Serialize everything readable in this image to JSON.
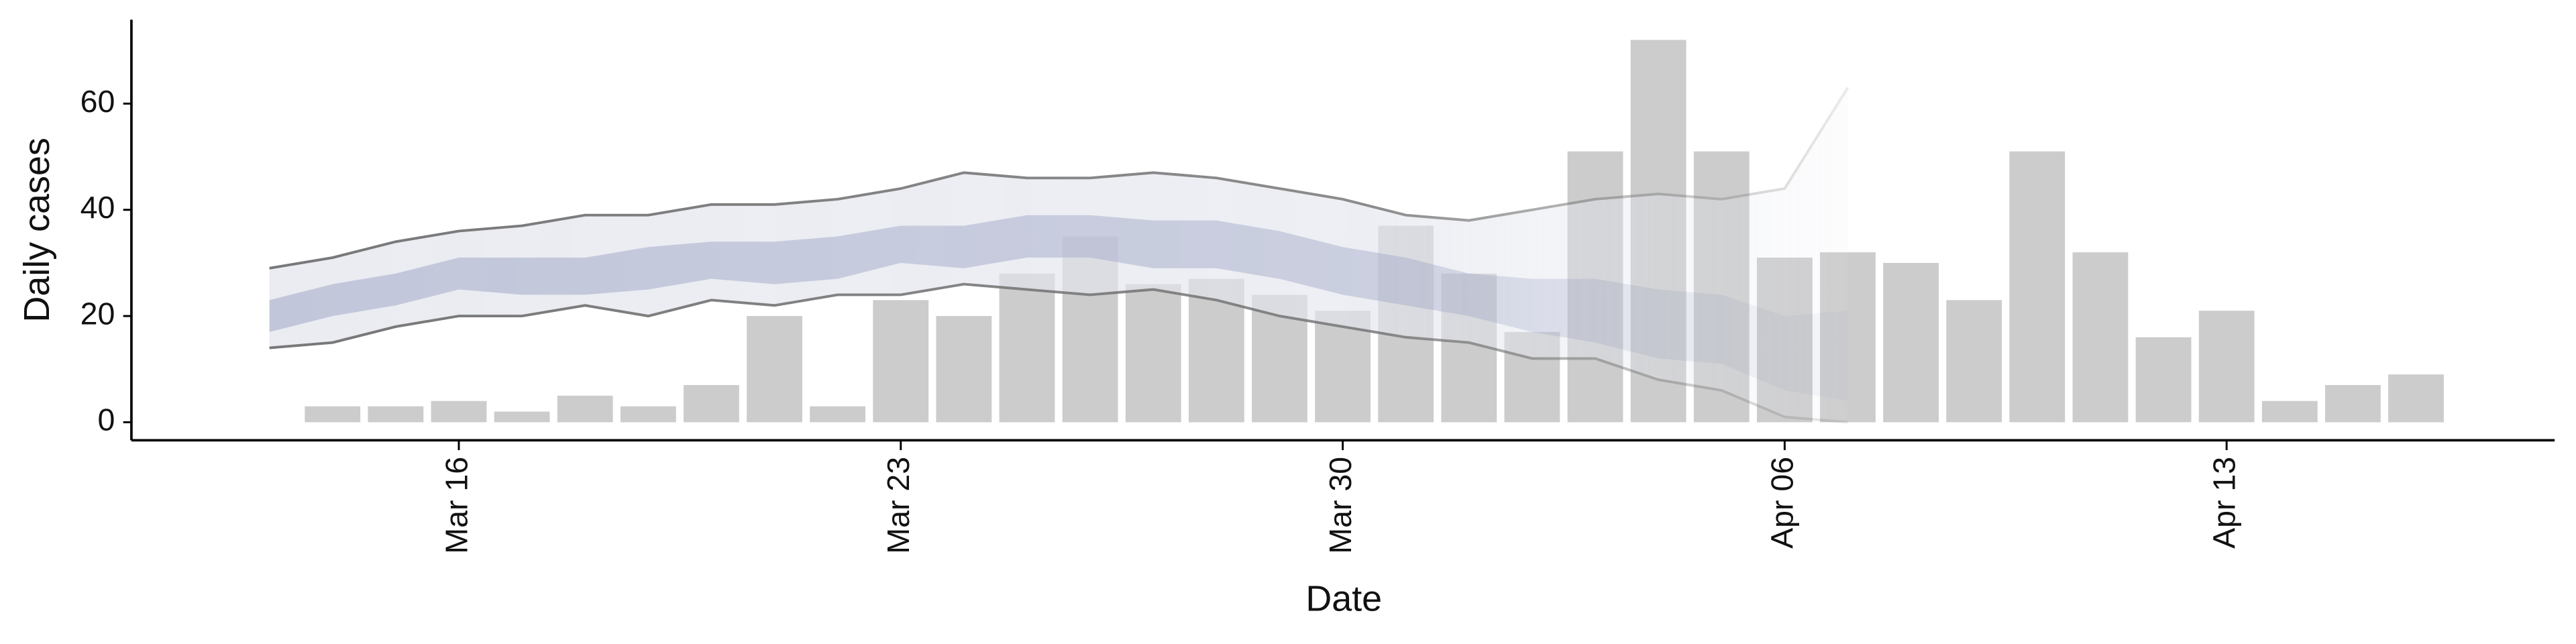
{
  "chart_data": {
    "type": "bar",
    "x_label": "Date",
    "y_label": "Daily cases",
    "categories": [
      null,
      null,
      null,
      "Mar 16",
      null,
      null,
      null,
      null,
      null,
      null,
      "Mar 23",
      null,
      null,
      null,
      null,
      null,
      null,
      "Mar 30",
      null,
      null,
      null,
      null,
      null,
      null,
      "Apr 06",
      null,
      null,
      null,
      null,
      null,
      null,
      "Apr 13",
      null,
      null,
      null
    ],
    "series": [
      {
        "color": "#cccccc",
        "values": [
          null,
          3,
          3,
          4,
          2,
          5,
          3,
          7,
          20,
          3,
          23,
          20,
          28,
          35,
          26,
          27,
          24,
          21,
          37,
          28,
          17,
          51,
          72,
          51,
          31,
          32,
          30,
          23,
          51,
          32,
          16,
          21,
          4,
          7,
          9
        ]
      }
    ],
    "bands": [
      {
        "color": "#e3e5ee",
        "line_color": "#777777",
        "upper": [
          29,
          31,
          34,
          36,
          37,
          39,
          39,
          41,
          41,
          42,
          44,
          47,
          46,
          46,
          47,
          46,
          44,
          42,
          39,
          38,
          40,
          42,
          43,
          42,
          44,
          63,
          null,
          null,
          null,
          null,
          null,
          null,
          null,
          null,
          null
        ],
        "lower": [
          14,
          15,
          18,
          20,
          20,
          22,
          20,
          23,
          22,
          24,
          24,
          26,
          25,
          24,
          25,
          23,
          20,
          18,
          16,
          15,
          12,
          12,
          8,
          6,
          1,
          0,
          null,
          null,
          null,
          null,
          null,
          null,
          null,
          null,
          null
        ]
      },
      {
        "color": "#b3b9d2",
        "upper": [
          23,
          26,
          28,
          31,
          31,
          31,
          33,
          34,
          34,
          35,
          37,
          37,
          39,
          39,
          38,
          38,
          36,
          33,
          31,
          28,
          27,
          27,
          25,
          24,
          20,
          21,
          null,
          null,
          null,
          null,
          null,
          null,
          null,
          null,
          null
        ],
        "lower": [
          17,
          20,
          22,
          25,
          24,
          24,
          25,
          27,
          26,
          27,
          30,
          29,
          31,
          31,
          29,
          29,
          27,
          24,
          22,
          20,
          17,
          15,
          12,
          11,
          6,
          4,
          null,
          null,
          null,
          null,
          null,
          null,
          null,
          null,
          null
        ]
      }
    ],
    "ylim": [
      -3.4,
      75.8
    ],
    "yticks": [
      0,
      20,
      40,
      60
    ]
  }
}
